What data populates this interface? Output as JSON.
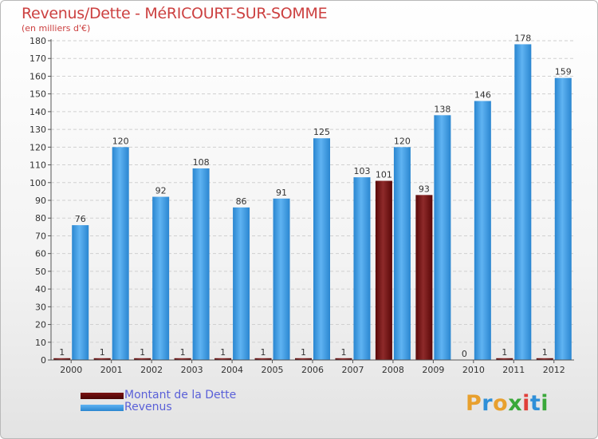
{
  "title": "Revenus/Dette - MéRICOURT-SUR-SOMME",
  "subtitle": "(en milliers d'€)",
  "logo": {
    "text": "Proxiti",
    "letters": [
      {
        "ch": "P",
        "color": "#e8a02e"
      },
      {
        "ch": "r",
        "color": "#2e8fd8"
      },
      {
        "ch": "o",
        "color": "#e8a02e"
      },
      {
        "ch": "x",
        "color": "#3aa83a"
      },
      {
        "ch": "i",
        "color": "#e0403a"
      },
      {
        "ch": "t",
        "color": "#2e8fd8"
      },
      {
        "ch": "i",
        "color": "#3aa83a"
      }
    ]
  },
  "chart_data": {
    "type": "bar",
    "categories": [
      "2000",
      "2001",
      "2002",
      "2003",
      "2004",
      "2005",
      "2006",
      "2007",
      "2008",
      "2009",
      "2010",
      "2011",
      "2012"
    ],
    "series": [
      {
        "name": "Montant de la Dette",
        "color": "#7a1212",
        "values": [
          1,
          1,
          1,
          1,
          1,
          1,
          1,
          1,
          101,
          93,
          0,
          1,
          1
        ]
      },
      {
        "name": "Revenus",
        "color": "#3f9de3",
        "values": [
          76,
          120,
          92,
          108,
          86,
          91,
          125,
          103,
          120,
          138,
          146,
          178,
          159
        ]
      }
    ],
    "ylim": [
      0,
      180
    ],
    "yticks": [
      0,
      10,
      20,
      30,
      40,
      50,
      60,
      70,
      80,
      90,
      100,
      110,
      120,
      130,
      140,
      150,
      160,
      170,
      180
    ],
    "grid": true,
    "legend": "bottom-left"
  }
}
